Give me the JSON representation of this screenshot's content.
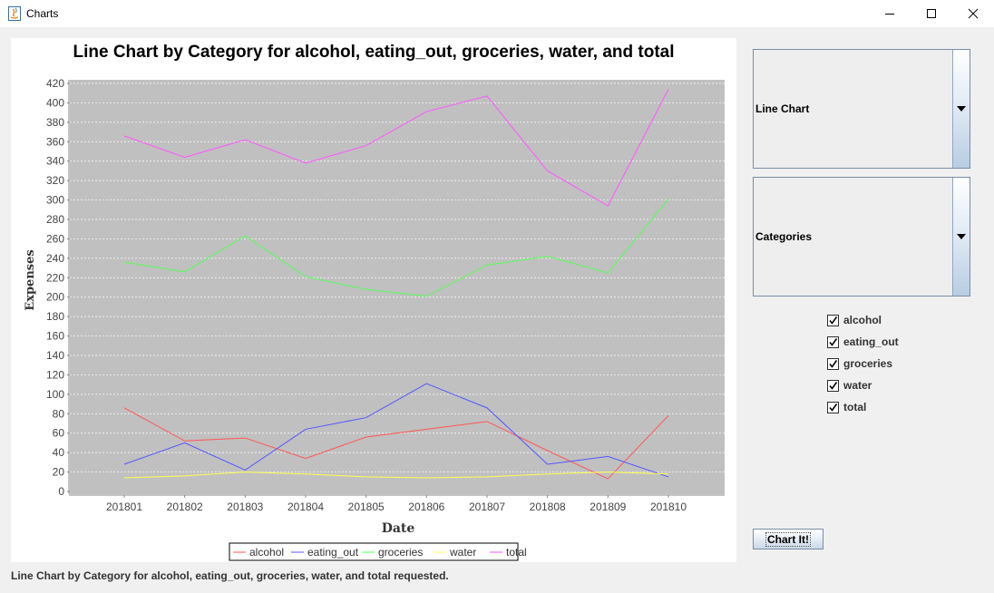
{
  "window": {
    "title": "Charts"
  },
  "chart_data": {
    "type": "line",
    "title": "Line Chart by Category for alcohol, eating_out, groceries, water, and total",
    "xlabel": "Date",
    "ylabel": "Expenses",
    "categories": [
      "201801",
      "201802",
      "201803",
      "201804",
      "201805",
      "201806",
      "201807",
      "201808",
      "201809",
      "201810"
    ],
    "ylim": [
      0,
      420
    ],
    "yticks": [
      0,
      20,
      40,
      60,
      80,
      100,
      120,
      140,
      160,
      180,
      200,
      220,
      240,
      260,
      280,
      300,
      320,
      340,
      360,
      380,
      400,
      420
    ],
    "grid": true,
    "legend_position": "bottom",
    "series": [
      {
        "name": "alcohol",
        "color": "#ff5555",
        "values": [
          86,
          52,
          55,
          34,
          56,
          64,
          72,
          42,
          13,
          78
        ]
      },
      {
        "name": "eating_out",
        "color": "#5555ff",
        "values": [
          28,
          50,
          22,
          64,
          76,
          111,
          86,
          28,
          36,
          15
        ]
      },
      {
        "name": "groceries",
        "color": "#55ff55",
        "values": [
          236,
          226,
          263,
          221,
          208,
          201,
          233,
          242,
          225,
          301
        ]
      },
      {
        "name": "water",
        "color": "#ffff55",
        "values": [
          14,
          16,
          20,
          18,
          15,
          14,
          15,
          18,
          20,
          18
        ]
      },
      {
        "name": "total",
        "color": "#ff55ff",
        "values": [
          366,
          344,
          362,
          338,
          356,
          391,
          407,
          330,
          294,
          414
        ]
      }
    ]
  },
  "controls": {
    "chart_type_value": "Line Chart",
    "grouping_value": "Categories",
    "checkboxes": [
      {
        "label": "alcohol",
        "checked": true
      },
      {
        "label": "eating_out",
        "checked": true
      },
      {
        "label": "groceries",
        "checked": true
      },
      {
        "label": "water",
        "checked": true
      },
      {
        "label": "total",
        "checked": true
      }
    ],
    "chart_button_label": "Chart It!"
  },
  "status_text": "Line Chart by Category for alcohol, eating_out, groceries, water, and total requested."
}
